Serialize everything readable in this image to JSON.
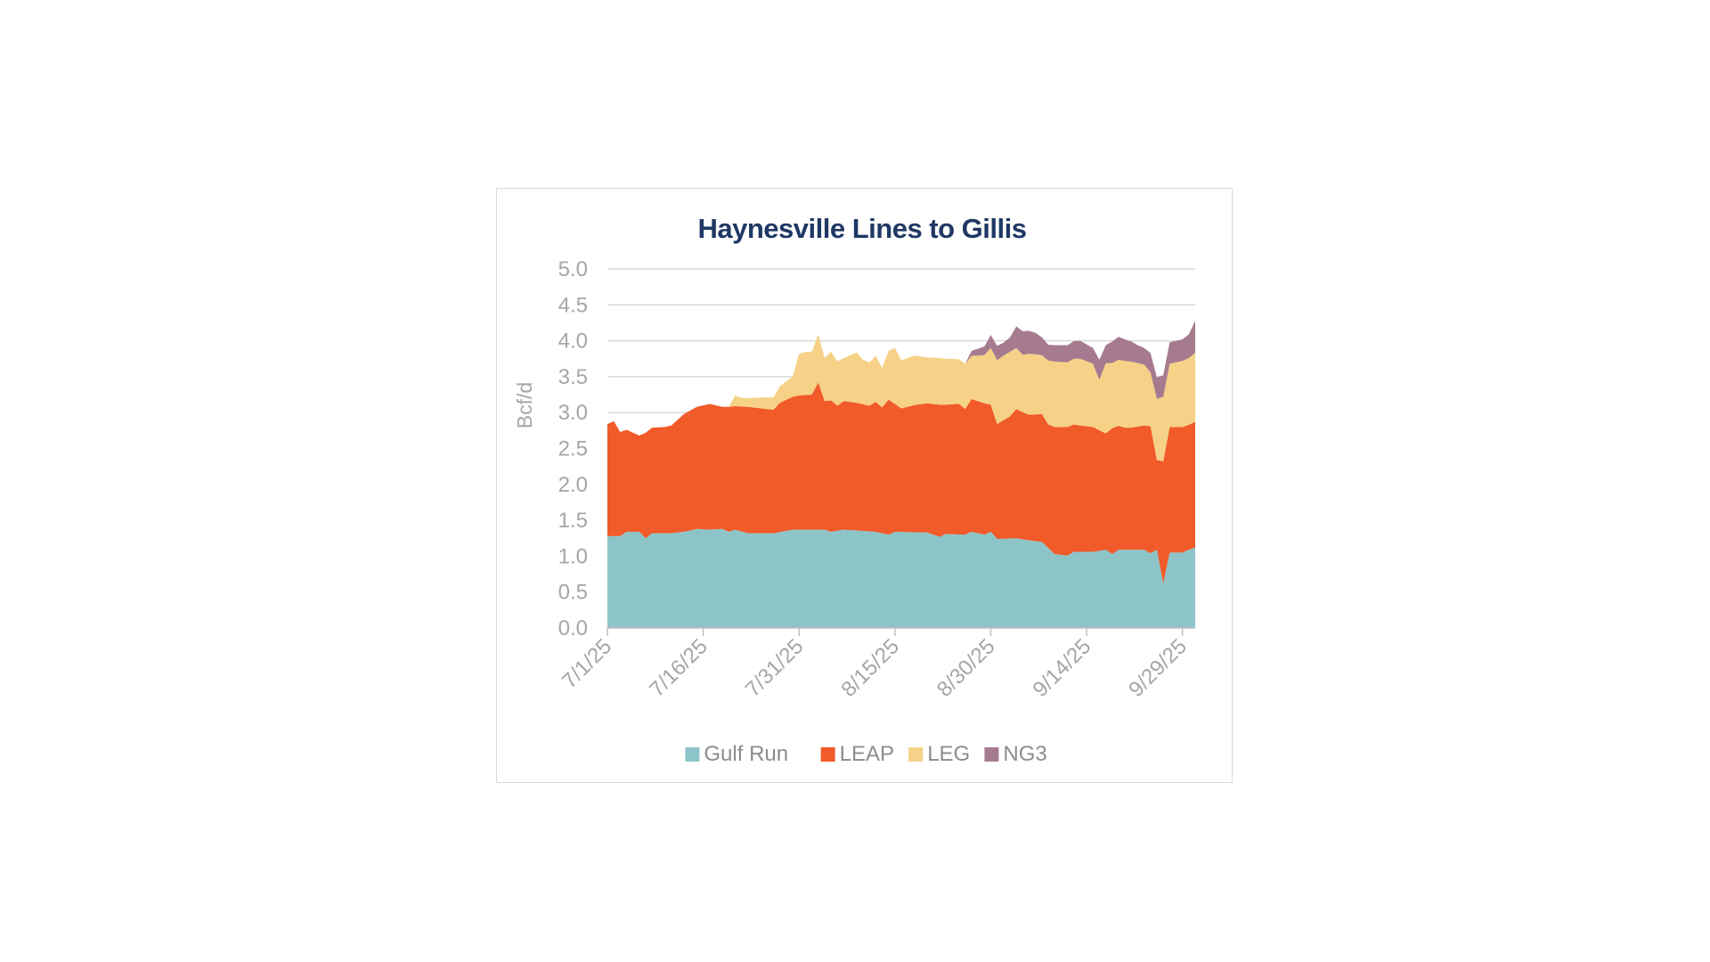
{
  "chart_data": {
    "type": "area",
    "stacked": true,
    "title": "Haynesville Lines to Gillis",
    "ylabel": "Bcf/d",
    "xlabel": "",
    "ylim": [
      0,
      5
    ],
    "y_ticks": [
      "0.0",
      "0.5",
      "1.0",
      "1.5",
      "2.0",
      "2.5",
      "3.0",
      "3.5",
      "4.0",
      "4.5",
      "5.0"
    ],
    "x_ticks": [
      "7/1/25",
      "7/16/25",
      "7/31/25",
      "8/15/25",
      "8/30/25",
      "9/14/25",
      "9/29/25"
    ],
    "x_start": "7/1/25",
    "x_end": "10/2/25",
    "grid": true,
    "legend_position": "bottom",
    "series": [
      {
        "name": "Gulf Run",
        "color": "#8dc4c8",
        "points": [
          [
            0,
            1.28
          ],
          [
            2,
            1.28
          ],
          [
            3,
            1.34
          ],
          [
            5,
            1.34
          ],
          [
            6,
            1.25
          ],
          [
            7,
            1.32
          ],
          [
            10,
            1.32
          ],
          [
            12,
            1.34
          ],
          [
            14,
            1.38
          ],
          [
            16,
            1.37
          ],
          [
            18,
            1.38
          ],
          [
            19,
            1.34
          ],
          [
            20,
            1.37
          ],
          [
            22,
            1.32
          ],
          [
            26,
            1.32
          ],
          [
            29,
            1.37
          ],
          [
            34,
            1.37
          ],
          [
            35,
            1.34
          ],
          [
            37,
            1.37
          ],
          [
            42,
            1.34
          ],
          [
            44,
            1.3
          ],
          [
            45,
            1.34
          ],
          [
            50,
            1.33
          ],
          [
            52,
            1.27
          ],
          [
            53,
            1.31
          ],
          [
            56,
            1.3
          ],
          [
            57,
            1.34
          ],
          [
            59,
            1.3
          ],
          [
            60,
            1.34
          ],
          [
            61,
            1.24
          ],
          [
            64,
            1.25
          ],
          [
            66,
            1.22
          ],
          [
            68,
            1.2
          ],
          [
            70,
            1.03
          ],
          [
            72,
            1.01
          ],
          [
            73,
            1.06
          ],
          [
            76,
            1.06
          ],
          [
            78,
            1.09
          ],
          [
            79,
            1.03
          ],
          [
            80,
            1.09
          ],
          [
            84,
            1.09
          ],
          [
            85,
            1.04
          ],
          [
            86,
            1.09
          ],
          [
            87,
            0.62
          ],
          [
            88,
            1.05
          ],
          [
            90,
            1.05
          ],
          [
            91,
            1.09
          ],
          [
            92,
            1.12
          ]
        ]
      },
      {
        "name": "LEAP",
        "color": "#f15a29",
        "points": [
          [
            0,
            1.56
          ],
          [
            1,
            1.6
          ],
          [
            2,
            1.45
          ],
          [
            3,
            1.42
          ],
          [
            5,
            1.34
          ],
          [
            6,
            1.47
          ],
          [
            7,
            1.47
          ],
          [
            9,
            1.48
          ],
          [
            10,
            1.5
          ],
          [
            12,
            1.64
          ],
          [
            14,
            1.7
          ],
          [
            16,
            1.75
          ],
          [
            18,
            1.7
          ],
          [
            19,
            1.74
          ],
          [
            20,
            1.72
          ],
          [
            22,
            1.76
          ],
          [
            26,
            1.72
          ],
          [
            27,
            1.8
          ],
          [
            29,
            1.85
          ],
          [
            30,
            1.87
          ],
          [
            32,
            1.88
          ],
          [
            33,
            2.05
          ],
          [
            34,
            1.79
          ],
          [
            35,
            1.83
          ],
          [
            36,
            1.74
          ],
          [
            37,
            1.79
          ],
          [
            39,
            1.78
          ],
          [
            41,
            1.75
          ],
          [
            42,
            1.81
          ],
          [
            43,
            1.75
          ],
          [
            44,
            1.88
          ],
          [
            45,
            1.78
          ],
          [
            46,
            1.72
          ],
          [
            48,
            1.77
          ],
          [
            50,
            1.8
          ],
          [
            52,
            1.84
          ],
          [
            53,
            1.8
          ],
          [
            55,
            1.82
          ],
          [
            56,
            1.75
          ],
          [
            57,
            1.85
          ],
          [
            59,
            1.83
          ],
          [
            60,
            1.77
          ],
          [
            61,
            1.6
          ],
          [
            62,
            1.65
          ],
          [
            63,
            1.7
          ],
          [
            64,
            1.8
          ],
          [
            65,
            1.77
          ],
          [
            66,
            1.75
          ],
          [
            68,
            1.78
          ],
          [
            69,
            1.72
          ],
          [
            70,
            1.77
          ],
          [
            72,
            1.79
          ],
          [
            74,
            1.76
          ],
          [
            76,
            1.74
          ],
          [
            78,
            1.62
          ],
          [
            79,
            1.75
          ],
          [
            81,
            1.7
          ],
          [
            82,
            1.7
          ],
          [
            84,
            1.73
          ],
          [
            85,
            1.77
          ],
          [
            86,
            1.25
          ],
          [
            87,
            1.7
          ],
          [
            88,
            1.75
          ],
          [
            90,
            1.75
          ],
          [
            91,
            1.74
          ],
          [
            92,
            1.75
          ]
        ]
      },
      {
        "name": "LEG",
        "color": "#f5d287",
        "points": [
          [
            0,
            0
          ],
          [
            19,
            0
          ],
          [
            20,
            0.15
          ],
          [
            21,
            0.12
          ],
          [
            22,
            0.12
          ],
          [
            24,
            0.15
          ],
          [
            26,
            0.17
          ],
          [
            27,
            0.23
          ],
          [
            29,
            0.28
          ],
          [
            30,
            0.58
          ],
          [
            31,
            0.6
          ],
          [
            32,
            0.6
          ],
          [
            33,
            0.67
          ],
          [
            34,
            0.6
          ],
          [
            35,
            0.68
          ],
          [
            36,
            0.62
          ],
          [
            37,
            0.6
          ],
          [
            39,
            0.7
          ],
          [
            40,
            0.62
          ],
          [
            41,
            0.6
          ],
          [
            42,
            0.64
          ],
          [
            43,
            0.55
          ],
          [
            44,
            0.68
          ],
          [
            45,
            0.78
          ],
          [
            46,
            0.67
          ],
          [
            48,
            0.69
          ],
          [
            50,
            0.64
          ],
          [
            52,
            0.65
          ],
          [
            53,
            0.64
          ],
          [
            55,
            0.62
          ],
          [
            56,
            0.63
          ],
          [
            57,
            0.6
          ],
          [
            59,
            0.67
          ],
          [
            60,
            0.79
          ],
          [
            61,
            0.89
          ],
          [
            62,
            0.9
          ],
          [
            63,
            0.9
          ],
          [
            64,
            0.85
          ],
          [
            65,
            0.8
          ],
          [
            66,
            0.85
          ],
          [
            68,
            0.82
          ],
          [
            69,
            0.89
          ],
          [
            70,
            0.91
          ],
          [
            72,
            0.9
          ],
          [
            74,
            0.93
          ],
          [
            76,
            0.88
          ],
          [
            77,
            0.7
          ],
          [
            78,
            0.98
          ],
          [
            79,
            0.91
          ],
          [
            81,
            0.93
          ],
          [
            82,
            0.92
          ],
          [
            84,
            0.85
          ],
          [
            85,
            0.75
          ],
          [
            86,
            0.85
          ],
          [
            87,
            0.9
          ],
          [
            88,
            0.88
          ],
          [
            90,
            0.92
          ],
          [
            91,
            0.93
          ],
          [
            92,
            0.96
          ]
        ]
      },
      {
        "name": "NG3",
        "color": "#a67b8f",
        "points": [
          [
            0,
            0
          ],
          [
            56,
            0
          ],
          [
            57,
            0.07
          ],
          [
            59,
            0.12
          ],
          [
            60,
            0.18
          ],
          [
            61,
            0.2
          ],
          [
            62,
            0.18
          ],
          [
            63,
            0.2
          ],
          [
            64,
            0.3
          ],
          [
            65,
            0.33
          ],
          [
            66,
            0.32
          ],
          [
            67,
            0.3
          ],
          [
            68,
            0.25
          ],
          [
            69,
            0.22
          ],
          [
            70,
            0.23
          ],
          [
            72,
            0.24
          ],
          [
            74,
            0.25
          ],
          [
            76,
            0.22
          ],
          [
            77,
            0.28
          ],
          [
            78,
            0.25
          ],
          [
            79,
            0.3
          ],
          [
            80,
            0.32
          ],
          [
            81,
            0.3
          ],
          [
            82,
            0.28
          ],
          [
            83,
            0.25
          ],
          [
            84,
            0.23
          ],
          [
            85,
            0.27
          ],
          [
            86,
            0.3
          ],
          [
            87,
            0.3
          ],
          [
            88,
            0.3
          ],
          [
            90,
            0.3
          ],
          [
            91,
            0.33
          ],
          [
            92,
            0.45
          ]
        ]
      }
    ]
  }
}
